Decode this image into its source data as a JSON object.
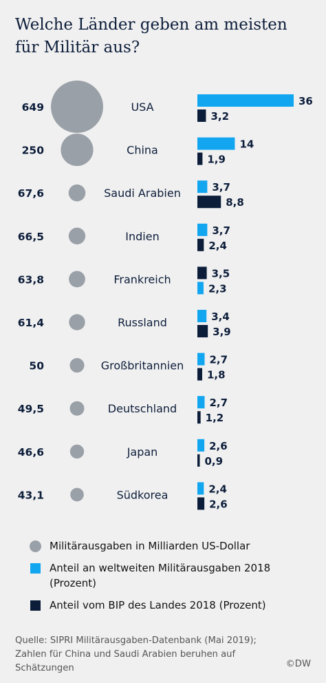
{
  "title": "Welche Länder geben am meisten für Militär aus?",
  "colors": {
    "circle": "#9aa0a8",
    "world_share": "#12a6f0",
    "gdp_share": "#0c1d3a"
  },
  "chart_data": {
    "type": "bar",
    "categories": [
      "USA",
      "China",
      "Saudi Arabien",
      "Indien",
      "Frankreich",
      "Russland",
      "Großbritannien",
      "Deutschland",
      "Japan",
      "Südkorea"
    ],
    "spending_labels": [
      "649",
      "250",
      "67,6",
      "66,5",
      "63,8",
      "61,4",
      "50",
      "49,5",
      "46,6",
      "43,1"
    ],
    "spending": [
      649,
      250,
      67.6,
      66.5,
      63.8,
      61.4,
      50,
      49.5,
      46.6,
      43.1
    ],
    "series": [
      {
        "name": "Anteil an weltweiten Militärausgaben 2018 (Prozent)",
        "values": [
          36,
          14,
          3.7,
          3.7,
          2.3,
          3.4,
          2.7,
          2.7,
          2.6,
          2.4
        ],
        "labels": [
          "36",
          "14",
          "3,7",
          "3,7",
          "2,3",
          "3,4",
          "2,7",
          "2,7",
          "2,6",
          "2,4"
        ]
      },
      {
        "name": "Anteil vom BIP des Landes 2018 (Prozent)",
        "values": [
          3.2,
          1.9,
          8.8,
          2.4,
          3.5,
          3.9,
          1.8,
          1.2,
          0.9,
          2.6
        ],
        "labels": [
          "3,2",
          "1,9",
          "8,8",
          "2,4",
          "3,5",
          "3,9",
          "1,8",
          "1,2",
          "0,9",
          "2,6"
        ]
      }
    ],
    "bar_order": [
      [
        "world",
        "gdp"
      ],
      [
        "world",
        "gdp"
      ],
      [
        "world",
        "gdp"
      ],
      [
        "world",
        "gdp"
      ],
      [
        "gdp",
        "world"
      ],
      [
        "world",
        "gdp"
      ],
      [
        "world",
        "gdp"
      ],
      [
        "world",
        "gdp"
      ],
      [
        "world",
        "gdp"
      ],
      [
        "world",
        "gdp"
      ]
    ]
  },
  "legend": [
    {
      "label": "Militärausgaben in Milliarden US-Dollar"
    },
    {
      "label": "Anteil an weltweiten Militärausgaben 2018 (Prozent)"
    },
    {
      "label": "Anteil vom BIP des Landes 2018 (Prozent)"
    }
  ],
  "source": "Quelle: SIPRI Militärausgaben-Datenbank (Mai 2019); Zahlen für China und Saudi Arabien beruhen auf Schätzungen",
  "credit": "©DW"
}
